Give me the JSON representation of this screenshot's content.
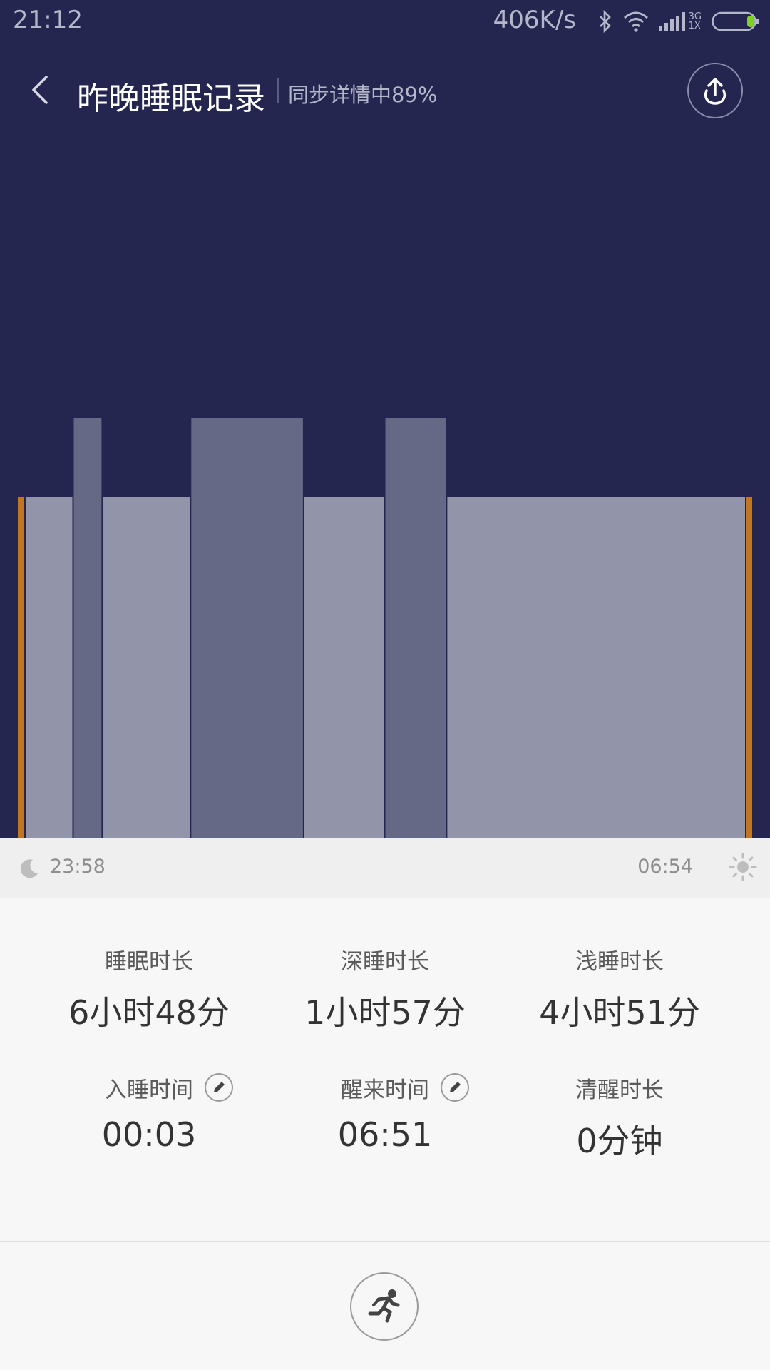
{
  "status_bar": {
    "time": "21:12",
    "net_speed": "406K/s",
    "network_label_top": "3G",
    "network_label_bottom": "1X",
    "icons": [
      "bluetooth-icon",
      "wifi-icon",
      "signal-icon",
      "battery-icon"
    ]
  },
  "header": {
    "title": "昨晚睡眠记录",
    "subtitle": "同步详情中89%",
    "back_icon": "chevron-left-icon",
    "share_icon": "upload-icon"
  },
  "chart_data": {
    "type": "bar",
    "description_hidden": false,
    "segments": [
      {
        "stage": "light",
        "level": 1,
        "duration_share": 0.065
      },
      {
        "stage": "deep",
        "level": 2,
        "duration_share": 0.04
      },
      {
        "stage": "light",
        "level": 1,
        "duration_share": 0.121
      },
      {
        "stage": "deep",
        "level": 2,
        "duration_share": 0.155
      },
      {
        "stage": "light",
        "level": 1,
        "duration_share": 0.111
      },
      {
        "stage": "deep",
        "level": 2,
        "duration_share": 0.085
      },
      {
        "stage": "light",
        "level": 1,
        "duration_share": 0.41
      }
    ],
    "colors": {
      "background": "#252650",
      "light": "#9294aa",
      "deep": "#666985",
      "edge_marker": "#c1761f"
    }
  },
  "time_axis": {
    "start_icon": "moon-icon",
    "start": "23:58",
    "end": "06:54",
    "end_icon": "sun-icon"
  },
  "stats": {
    "sleep_duration": {
      "label": "睡眠时长",
      "value": "6小时48分"
    },
    "deep_duration": {
      "label": "深睡时长",
      "value": "1小时57分"
    },
    "light_duration": {
      "label": "浅睡时长",
      "value": "4小时51分"
    },
    "fall_asleep": {
      "label": "入睡时间",
      "value": "00:03"
    },
    "wake_up": {
      "label": "醒来时间",
      "value": "06:51"
    },
    "awake_duration": {
      "label": "清醒时长",
      "value": "0分钟"
    }
  },
  "bottom": {
    "action_icon": "running-icon"
  }
}
